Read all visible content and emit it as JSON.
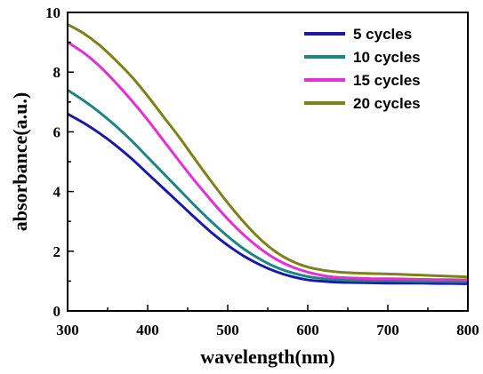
{
  "chart_data": {
    "type": "line",
    "title": "",
    "xlabel": "wavelength(nm)",
    "ylabel": "absorbance(a.u.)",
    "xlim": [
      300,
      800
    ],
    "ylim": [
      0,
      10
    ],
    "xticks": [
      300,
      400,
      500,
      600,
      700,
      800
    ],
    "yticks": [
      0,
      2,
      4,
      6,
      8,
      10
    ],
    "x": [
      300,
      320,
      340,
      360,
      380,
      400,
      420,
      440,
      460,
      480,
      500,
      520,
      540,
      560,
      580,
      600,
      620,
      640,
      660,
      680,
      700,
      720,
      740,
      760,
      780,
      800
    ],
    "grid": false,
    "legend_position": "top-right",
    "series": [
      {
        "name": "5  cycles",
        "color": "#1a1aa8",
        "values": [
          6.6,
          6.3,
          5.95,
          5.55,
          5.1,
          4.6,
          4.1,
          3.6,
          3.1,
          2.62,
          2.2,
          1.84,
          1.55,
          1.32,
          1.15,
          1.04,
          0.99,
          0.96,
          0.95,
          0.94,
          0.93,
          0.93,
          0.93,
          0.92,
          0.92,
          0.91
        ]
      },
      {
        "name": "10 cycles",
        "color": "#1e8484",
        "values": [
          7.4,
          7.05,
          6.65,
          6.2,
          5.7,
          5.15,
          4.6,
          4.05,
          3.5,
          2.98,
          2.5,
          2.08,
          1.74,
          1.47,
          1.28,
          1.15,
          1.08,
          1.04,
          1.02,
          1.01,
          1.01,
          1.0,
          0.99,
          0.99,
          0.98,
          0.98
        ]
      },
      {
        "name": "15 cycles",
        "color": "#e030d6",
        "values": [
          9.0,
          8.65,
          8.2,
          7.65,
          7.05,
          6.4,
          5.7,
          5.0,
          4.32,
          3.68,
          3.08,
          2.55,
          2.1,
          1.74,
          1.48,
          1.3,
          1.18,
          1.12,
          1.1,
          1.08,
          1.08,
          1.07,
          1.06,
          1.05,
          1.05,
          1.04
        ]
      },
      {
        "name": "20 cycles",
        "color": "#808018",
        "values": [
          9.6,
          9.3,
          8.9,
          8.4,
          7.85,
          7.2,
          6.5,
          5.8,
          5.05,
          4.32,
          3.62,
          2.98,
          2.42,
          1.98,
          1.67,
          1.47,
          1.36,
          1.3,
          1.27,
          1.25,
          1.24,
          1.22,
          1.2,
          1.18,
          1.16,
          1.14
        ]
      }
    ]
  }
}
